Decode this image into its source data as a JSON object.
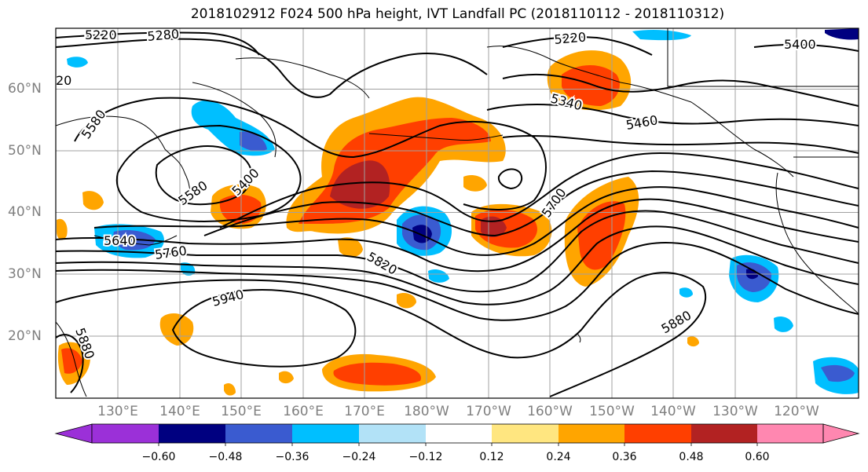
{
  "title": "2018102912 F024 500 hPa height, IVT Landfall PC (2018110112 - 2018110312)",
  "map": {
    "latitude_labels": [
      "60°N",
      "50°N",
      "40°N",
      "30°N",
      "20°N"
    ],
    "longitude_labels": [
      "130°E",
      "140°E",
      "150°E",
      "160°E",
      "170°E",
      "180°W",
      "170°W",
      "160°W",
      "150°W",
      "140°W",
      "130°W",
      "120°W"
    ],
    "height_contour_labels": [
      "5220",
      "5280",
      "5220",
      "5400",
      "20",
      "5580",
      "5340",
      "5400",
      "5460",
      "5580",
      "5700",
      "5640",
      "5760",
      "5820",
      "5940",
      "5880",
      "5880"
    ],
    "height_contour_levels_m": [
      5220,
      5280,
      5340,
      5400,
      5460,
      5520,
      5580,
      5640,
      5700,
      5760,
      5820,
      5880,
      5940
    ],
    "shading_field": "IVT Landfall PC"
  },
  "colorbar": {
    "tick_labels": [
      "−0.60",
      "−0.48",
      "−0.36",
      "−0.24",
      "−0.12",
      "0.12",
      "0.24",
      "0.36",
      "0.48",
      "0.60"
    ],
    "bins": [
      {
        "range": "< -0.60",
        "color": "#9b30d8"
      },
      {
        "range": "-0.60 to -0.48",
        "color": "#000080"
      },
      {
        "range": "-0.48 to -0.36",
        "color": "#3a5bd0"
      },
      {
        "range": "-0.36 to -0.24",
        "color": "#00bfff"
      },
      {
        "range": "-0.24 to -0.12",
        "color": "#b2e2f7"
      },
      {
        "range": "-0.12 to 0.12",
        "color": "#ffffff"
      },
      {
        "range": "0.12 to 0.24",
        "color": "#ffe680"
      },
      {
        "range": "0.24 to 0.36",
        "color": "#ffa500"
      },
      {
        "range": "0.36 to 0.48",
        "color": "#ff3f00"
      },
      {
        "range": "0.48 to 0.60",
        "color": "#b22222"
      },
      {
        "range": "> 0.60",
        "color": "#ff87b0"
      }
    ]
  }
}
